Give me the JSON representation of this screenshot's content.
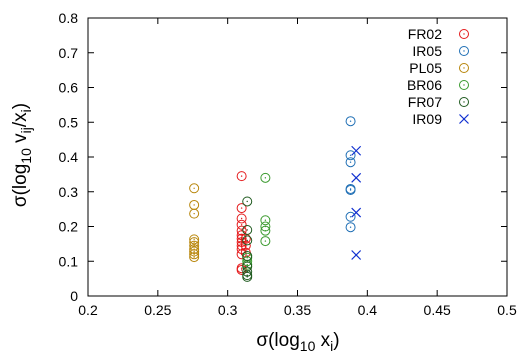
{
  "chart_data": {
    "type": "scatter",
    "title": "",
    "xlabel": {
      "prefix": "σ(log",
      "sub1": "10",
      "mid": " x",
      "sub2": "i",
      "suffix": ")"
    },
    "ylabel": {
      "prefix": "σ(log",
      "sub1": "10",
      "mid": " v",
      "sub2": "ij",
      "mid2": "/x",
      "sub3": "i",
      "suffix": ")"
    },
    "xlim": [
      0.2,
      0.5
    ],
    "ylim": [
      0,
      0.8
    ],
    "xticks": [
      0.2,
      0.25,
      0.3,
      0.35,
      0.4,
      0.45,
      0.5
    ],
    "xtick_labels": [
      "0.2",
      "0.25",
      "0.3",
      "0.35",
      "0.4",
      "0.45",
      "0.5"
    ],
    "yticks": [
      0,
      0.1,
      0.2,
      0.3,
      0.4,
      0.5,
      0.6,
      0.7,
      0.8
    ],
    "ytick_labels": [
      "0",
      "0.1",
      "0.2",
      "0.3",
      "0.4",
      "0.5",
      "0.6",
      "0.7",
      "0.8"
    ],
    "grid": false,
    "legend_position": "top-right",
    "series": [
      {
        "name": "FR02",
        "marker": "circle",
        "color": "#e41a1c",
        "points": [
          [
            0.31,
            0.345
          ],
          [
            0.31,
            0.253
          ],
          [
            0.31,
            0.223
          ],
          [
            0.31,
            0.205
          ],
          [
            0.31,
            0.188
          ],
          [
            0.31,
            0.175
          ],
          [
            0.31,
            0.165
          ],
          [
            0.31,
            0.155
          ],
          [
            0.31,
            0.145
          ],
          [
            0.31,
            0.135
          ],
          [
            0.31,
            0.12
          ],
          [
            0.31,
            0.08
          ],
          [
            0.31,
            0.075
          ],
          [
            0.313,
            0.165
          ],
          [
            0.313,
            0.145
          ],
          [
            0.313,
            0.125
          ]
        ]
      },
      {
        "name": "IR05",
        "marker": "circle",
        "color": "#1f6fb5",
        "points": [
          [
            0.388,
            0.503
          ],
          [
            0.388,
            0.405
          ],
          [
            0.388,
            0.385
          ],
          [
            0.388,
            0.308
          ],
          [
            0.388,
            0.305
          ],
          [
            0.388,
            0.228
          ],
          [
            0.388,
            0.198
          ]
        ]
      },
      {
        "name": "PL05",
        "marker": "circle",
        "color": "#b8860b",
        "points": [
          [
            0.276,
            0.31
          ],
          [
            0.276,
            0.262
          ],
          [
            0.276,
            0.237
          ],
          [
            0.276,
            0.163
          ],
          [
            0.276,
            0.155
          ],
          [
            0.276,
            0.145
          ],
          [
            0.276,
            0.135
          ],
          [
            0.276,
            0.128
          ],
          [
            0.276,
            0.12
          ],
          [
            0.276,
            0.112
          ]
        ]
      },
      {
        "name": "BR06",
        "marker": "circle",
        "color": "#3a9a2e",
        "points": [
          [
            0.327,
            0.34
          ],
          [
            0.327,
            0.218
          ],
          [
            0.327,
            0.2
          ],
          [
            0.327,
            0.188
          ],
          [
            0.327,
            0.158
          ],
          [
            0.314,
            0.11
          ],
          [
            0.314,
            0.1
          ],
          [
            0.314,
            0.09
          ]
        ]
      },
      {
        "name": "FR07",
        "marker": "circle",
        "color": "#1f5a1f",
        "points": [
          [
            0.314,
            0.272
          ],
          [
            0.314,
            0.19
          ],
          [
            0.314,
            0.16
          ],
          [
            0.314,
            0.115
          ],
          [
            0.314,
            0.085
          ],
          [
            0.314,
            0.07
          ],
          [
            0.314,
            0.06
          ],
          [
            0.314,
            0.055
          ]
        ]
      },
      {
        "name": "IR09",
        "marker": "x",
        "color": "#1030d0",
        "points": [
          [
            0.392,
            0.418
          ],
          [
            0.392,
            0.34
          ],
          [
            0.392,
            0.24
          ],
          [
            0.392,
            0.118
          ]
        ]
      }
    ]
  }
}
